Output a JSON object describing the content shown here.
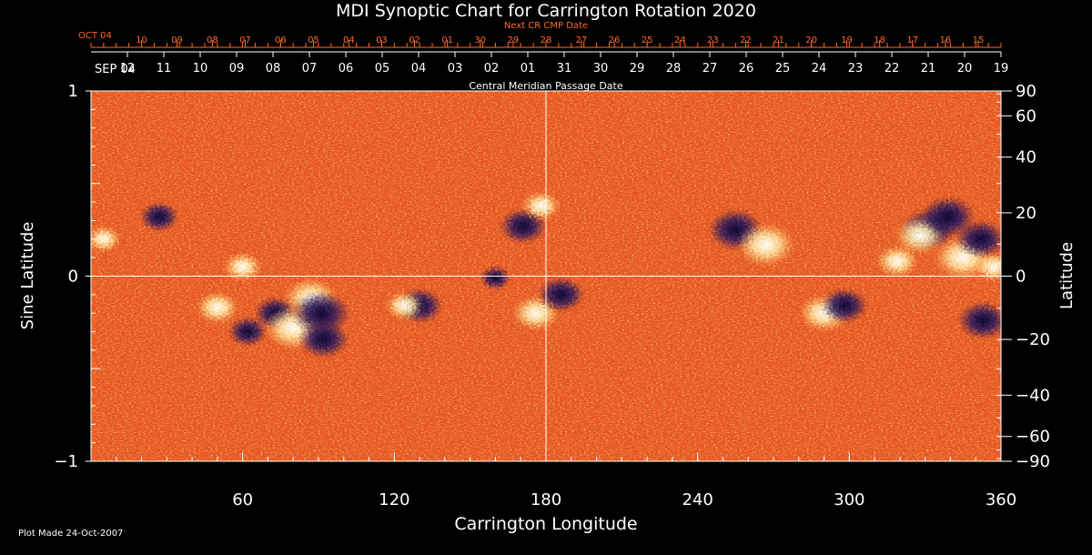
{
  "colors": {
    "background": "#000000",
    "axes": "#ffffff",
    "next_cr_text": "#ff6a2a",
    "map_base": "#e8541c",
    "positive_polarity": "#ffffff",
    "negative_polarity": "#1a1450"
  },
  "footer": {
    "plot_made": "Plot Made 24-Oct-2007"
  },
  "chart_data": {
    "type": "heatmap",
    "title": "MDI Synoptic Chart for Carrington Rotation 2020",
    "xlabel": "Carrington Longitude",
    "ylabel_left": "Sine Latitude",
    "ylabel_right": "Latitude",
    "xlim": [
      0,
      360
    ],
    "ylim": [
      -1,
      1
    ],
    "x_ticks": [
      60,
      120,
      180,
      240,
      300,
      360
    ],
    "y_ticks_left": [
      {
        "value": 1,
        "label": "1"
      },
      {
        "value": 0,
        "label": "0"
      },
      {
        "value": -1,
        "label": "−1"
      }
    ],
    "y_ticks_right_latitude": [
      {
        "lat": 90,
        "label": "90"
      },
      {
        "lat": 60,
        "label": "60"
      },
      {
        "lat": 40,
        "label": "40"
      },
      {
        "lat": 20,
        "label": "20"
      },
      {
        "lat": 0,
        "label": "0"
      },
      {
        "lat": -20,
        "label": "−20"
      },
      {
        "lat": -40,
        "label": "−40"
      },
      {
        "lat": -60,
        "label": "−60"
      },
      {
        "lat": -90,
        "label": "−90"
      }
    ],
    "cmp_axis": {
      "label": "Central Meridian Passage Date",
      "start_label": "SEP 04",
      "ticks": [
        {
          "lon": 24,
          "label": "12"
        },
        {
          "lon": 48,
          "label": "11"
        },
        {
          "lon": 72,
          "label": "10"
        },
        {
          "lon": 96,
          "label": "09"
        },
        {
          "lon": 120,
          "label": "08"
        },
        {
          "lon": 144,
          "label": "07"
        },
        {
          "lon": 168,
          "label": "06"
        },
        {
          "lon": 192,
          "label": "05"
        },
        {
          "lon": 216,
          "label": "04"
        },
        {
          "lon": 240,
          "label": "03"
        },
        {
          "lon": 264,
          "label": "02"
        },
        {
          "lon": 288,
          "label": "01"
        },
        {
          "lon": 312,
          "label": "31"
        },
        {
          "lon": 336,
          "label": "30"
        },
        {
          "lon": 360,
          "label": "29"
        },
        {
          "lon": 384,
          "label": "28"
        },
        {
          "lon": 408,
          "label": "27"
        },
        {
          "lon": 432,
          "label": "26"
        },
        {
          "lon": 456,
          "label": "25"
        },
        {
          "lon": 480,
          "label": "24"
        },
        {
          "lon": 504,
          "label": "23"
        },
        {
          "lon": 528,
          "label": "22"
        },
        {
          "lon": 552,
          "label": "21"
        },
        {
          "lon": 576,
          "label": "20"
        },
        {
          "lon": 600,
          "label": "19"
        }
      ]
    },
    "next_cr_axis": {
      "label": "Next CR CMP Date",
      "start_label": "OCT 04",
      "ticks": [
        {
          "lon": 20,
          "label": "10"
        },
        {
          "lon": 34,
          "label": "09"
        },
        {
          "lon": 48,
          "label": "08"
        },
        {
          "lon": 61,
          "label": "07"
        },
        {
          "lon": 75,
          "label": "06"
        },
        {
          "lon": 88,
          "label": "05"
        },
        {
          "lon": 102,
          "label": "04"
        },
        {
          "lon": 115,
          "label": "03"
        },
        {
          "lon": 128,
          "label": "02"
        },
        {
          "lon": 141,
          "label": "01"
        },
        {
          "lon": 154,
          "label": "30"
        },
        {
          "lon": 167,
          "label": "29"
        },
        {
          "lon": 180,
          "label": "28"
        },
        {
          "lon": 194,
          "label": "27"
        },
        {
          "lon": 207,
          "label": "26"
        },
        {
          "lon": 220,
          "label": "25"
        },
        {
          "lon": 233,
          "label": "24"
        },
        {
          "lon": 246,
          "label": "23"
        },
        {
          "lon": 259,
          "label": "22"
        },
        {
          "lon": 272,
          "label": "21"
        },
        {
          "lon": 285,
          "label": "20"
        },
        {
          "lon": 299,
          "label": "19"
        },
        {
          "lon": 312,
          "label": "18"
        },
        {
          "lon": 325,
          "label": "17"
        },
        {
          "lon": 338,
          "label": "16"
        },
        {
          "lon": 351,
          "label": "15"
        }
      ]
    },
    "active_regions": [
      {
        "lon": 27,
        "sinlat": 0.32,
        "polarity": "negative",
        "strength": 0.5
      },
      {
        "lon": 5,
        "sinlat": 0.2,
        "polarity": "positive",
        "strength": 0.4
      },
      {
        "lon": 50,
        "sinlat": -0.17,
        "polarity": "positive",
        "strength": 0.6
      },
      {
        "lon": 60,
        "sinlat": 0.05,
        "polarity": "positive",
        "strength": 0.5
      },
      {
        "lon": 62,
        "sinlat": -0.3,
        "polarity": "negative",
        "strength": 0.5
      },
      {
        "lon": 73,
        "sinlat": -0.2,
        "polarity": "negative",
        "strength": 0.6
      },
      {
        "lon": 80,
        "sinlat": -0.28,
        "polarity": "positive",
        "strength": 1.0
      },
      {
        "lon": 87,
        "sinlat": -0.12,
        "polarity": "positive",
        "strength": 0.9
      },
      {
        "lon": 91,
        "sinlat": -0.2,
        "polarity": "negative",
        "strength": 1.0
      },
      {
        "lon": 92,
        "sinlat": -0.34,
        "polarity": "negative",
        "strength": 0.8
      },
      {
        "lon": 130,
        "sinlat": -0.16,
        "polarity": "negative",
        "strength": 0.7
      },
      {
        "lon": 124,
        "sinlat": -0.16,
        "polarity": "positive",
        "strength": 0.5
      },
      {
        "lon": 171,
        "sinlat": 0.27,
        "polarity": "negative",
        "strength": 0.7
      },
      {
        "lon": 178,
        "sinlat": 0.38,
        "polarity": "positive",
        "strength": 0.5
      },
      {
        "lon": 176,
        "sinlat": -0.2,
        "polarity": "positive",
        "strength": 0.7
      },
      {
        "lon": 186,
        "sinlat": -0.1,
        "polarity": "negative",
        "strength": 0.7
      },
      {
        "lon": 160,
        "sinlat": -0.01,
        "polarity": "negative",
        "strength": 0.3
      },
      {
        "lon": 255,
        "sinlat": 0.25,
        "polarity": "negative",
        "strength": 0.9
      },
      {
        "lon": 267,
        "sinlat": 0.17,
        "polarity": "positive",
        "strength": 1.0
      },
      {
        "lon": 290,
        "sinlat": -0.2,
        "polarity": "positive",
        "strength": 0.8
      },
      {
        "lon": 298,
        "sinlat": -0.16,
        "polarity": "negative",
        "strength": 0.7
      },
      {
        "lon": 331,
        "sinlat": 0.25,
        "polarity": "negative",
        "strength": 0.9
      },
      {
        "lon": 328,
        "sinlat": 0.22,
        "polarity": "positive",
        "strength": 0.8
      },
      {
        "lon": 339,
        "sinlat": 0.32,
        "polarity": "negative",
        "strength": 0.9
      },
      {
        "lon": 345,
        "sinlat": 0.1,
        "polarity": "positive",
        "strength": 1.0
      },
      {
        "lon": 352,
        "sinlat": 0.2,
        "polarity": "negative",
        "strength": 0.8
      },
      {
        "lon": 353,
        "sinlat": -0.24,
        "polarity": "negative",
        "strength": 0.8
      },
      {
        "lon": 357,
        "sinlat": 0.05,
        "polarity": "positive",
        "strength": 0.5
      },
      {
        "lon": 319,
        "sinlat": 0.08,
        "polarity": "positive",
        "strength": 0.6
      }
    ]
  }
}
